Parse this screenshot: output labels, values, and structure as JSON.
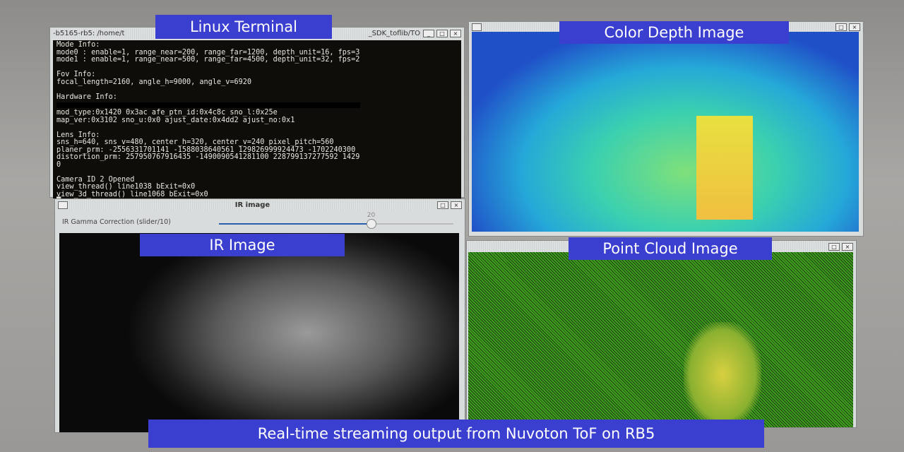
{
  "labels": {
    "terminal": "Linux Terminal",
    "depth": "Color Depth Image",
    "ir": "IR Image",
    "pointcloud": "Point Cloud Image",
    "caption": "Real-time streaming output from Nuvoton ToF on RB5"
  },
  "terminal": {
    "title_left": "-b5165-rb5: /home/t",
    "title_right": "_SDK_toflib/TO",
    "lines_a": "Mode Info:\nmode0 : enable=1, range_near=200, range_far=1200, depth_unit=16, fps=3\nmode1 : enable=1, range_near=500, range_far=4500, depth_unit=32, fps=2\n\nFov Info:\nfocal_length=2160, angle_h=9000, angle_v=6920\n\nHardware Info:",
    "lines_b": "mod_type:0x1420 0x3ac afe_ptn_id:0x4c8c sno_l:0x25e\nmap_ver:0x3102 sno_u:0x0 ajust_date:0x4dd2 ajust_no:0x1\n\nLens Info:\nsns_h=640, sns_v=480, center_h=320, center_v=240 pixel_pitch=560\nplaner_prm: -2556331701141 -1588038640561 129826999924473 -1702240300\ndistortion_prm: 257950767916435 -1490090541281100 228799137277592 1429\n0\n\nCamera ID 2 Opened\nview_thread() line1038 bExit=0x0\nview_3d_thread() line1068 bExit=0x0\n█"
  },
  "ir_window": {
    "title": "IR image",
    "slider_label": "IR Gamma Correction (slider/10)",
    "slider_value": "20",
    "slider_fill_percent": 65
  },
  "buttons": {
    "min": "_",
    "max": "□",
    "close": "×"
  }
}
